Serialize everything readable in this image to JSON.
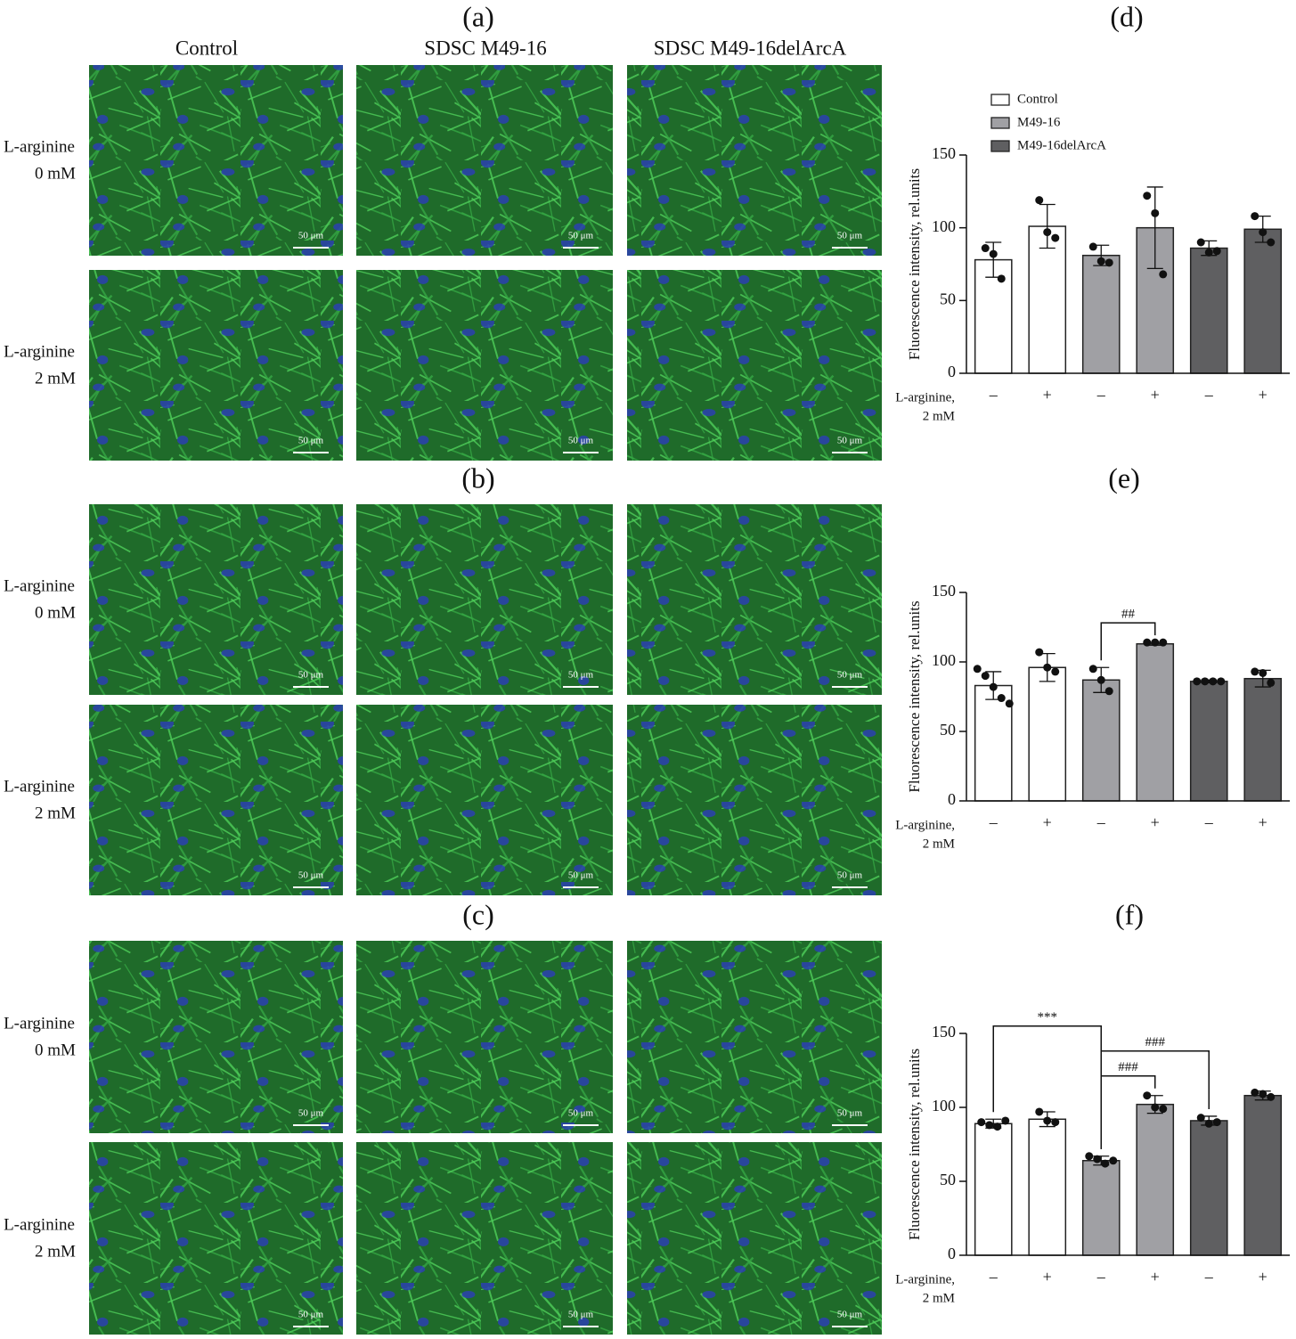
{
  "micrographs": {
    "panels": [
      "(a)",
      "(b)",
      "(c)"
    ],
    "columns": [
      "Control",
      "SDSC M49-16",
      "SDSC M49-16delArcA"
    ],
    "rows": [
      [
        "L-arginine",
        "0 mM"
      ],
      [
        "L-arginine",
        "2 mM"
      ]
    ],
    "scale_bar": "50 μm"
  },
  "chart_data": [
    {
      "type": "bar",
      "title": "(d)",
      "ylabel": "Fluorescence intensity, rel.units",
      "xlabel": [
        "L-arginine,",
        "2 mM"
      ],
      "categories": [
        "–",
        "+",
        "–",
        "+",
        "–",
        "+"
      ],
      "ylim": [
        0,
        150
      ],
      "yticks": [
        0,
        50,
        100,
        150
      ],
      "legend": true,
      "series": [
        {
          "name": "Control",
          "color": "#ffffff",
          "values": [
            78,
            101,
            null,
            null,
            null,
            null
          ],
          "errors": [
            12,
            15,
            null,
            null,
            null,
            null
          ],
          "points": [
            [
              86,
              82,
              65
            ],
            [
              119,
              97,
              93
            ],
            null,
            null,
            null,
            null
          ]
        },
        {
          "name": "M49-16",
          "color": "#a0a0a4",
          "values": [
            null,
            null,
            81,
            100,
            null,
            null
          ],
          "errors": [
            null,
            null,
            7,
            28,
            null,
            null
          ],
          "points": [
            null,
            null,
            [
              87,
              77,
              76
            ],
            [
              122,
              110,
              68
            ],
            null,
            null
          ]
        },
        {
          "name": "M49-16delArcA",
          "color": "#5f5f61",
          "values": [
            null,
            null,
            null,
            null,
            86,
            99
          ],
          "errors": [
            null,
            null,
            null,
            null,
            5,
            9
          ],
          "points": [
            null,
            null,
            null,
            null,
            [
              90,
              83,
              84
            ],
            [
              108,
              97,
              90
            ]
          ]
        }
      ],
      "annotations": []
    },
    {
      "type": "bar",
      "title": "(e)",
      "ylabel": "Fluorescence intensity, rel.units",
      "xlabel": [
        "L-arginine,",
        "2 mM"
      ],
      "categories": [
        "–",
        "+",
        "–",
        "+",
        "–",
        "+"
      ],
      "ylim": [
        0,
        150
      ],
      "yticks": [
        0,
        50,
        100,
        150
      ],
      "legend": false,
      "series": [
        {
          "color": "#ffffff",
          "values": [
            83,
            96,
            null,
            null,
            null,
            null
          ],
          "errors": [
            10,
            10,
            null,
            null,
            null,
            null
          ],
          "points": [
            [
              95,
              90,
              82,
              74,
              70
            ],
            [
              107,
              96,
              93
            ],
            null,
            null,
            null,
            null
          ]
        },
        {
          "color": "#a0a0a4",
          "values": [
            null,
            null,
            87,
            113,
            null,
            null
          ],
          "errors": [
            null,
            null,
            9,
            1,
            null,
            null
          ],
          "points": [
            null,
            null,
            [
              95,
              87,
              79
            ],
            [
              114,
              114,
              114
            ],
            null,
            null
          ]
        },
        {
          "color": "#5f5f61",
          "values": [
            null,
            null,
            null,
            null,
            86,
            88
          ],
          "errors": [
            null,
            null,
            null,
            null,
            1,
            6
          ],
          "points": [
            null,
            null,
            null,
            null,
            [
              86,
              86,
              86,
              86
            ],
            [
              93,
              92,
              85
            ]
          ]
        }
      ],
      "annotations": [
        {
          "text": "##",
          "between": [
            2,
            3
          ]
        }
      ]
    },
    {
      "type": "bar",
      "title": "(f)",
      "ylabel": "Fluorescence intensity, rel.units",
      "xlabel": [
        "L-arginine,",
        "2 mM"
      ],
      "categories": [
        "–",
        "+",
        "–",
        "+",
        "–",
        "+"
      ],
      "ylim": [
        0,
        150
      ],
      "yticks": [
        0,
        50,
        100,
        150
      ],
      "legend": false,
      "series": [
        {
          "color": "#ffffff",
          "values": [
            89,
            92,
            null,
            null,
            null,
            null
          ],
          "errors": [
            3,
            5,
            null,
            null,
            null,
            null
          ],
          "points": [
            [
              90,
              88,
              87,
              91
            ],
            [
              97,
              91,
              90
            ],
            null,
            null,
            null,
            null
          ]
        },
        {
          "color": "#a0a0a4",
          "values": [
            null,
            null,
            64,
            102,
            null,
            null
          ],
          "errors": [
            null,
            null,
            3,
            6,
            null,
            null
          ],
          "points": [
            null,
            null,
            [
              67,
              65,
              62,
              64
            ],
            [
              108,
              100,
              99
            ],
            null,
            null
          ]
        },
        {
          "color": "#5f5f61",
          "values": [
            null,
            null,
            null,
            null,
            91,
            108
          ],
          "errors": [
            null,
            null,
            null,
            null,
            3,
            3
          ],
          "points": [
            null,
            null,
            null,
            null,
            [
              93,
              89,
              90
            ],
            [
              110,
              109,
              107
            ]
          ]
        }
      ],
      "annotations": [
        {
          "text": "###",
          "between": [
            2,
            3
          ]
        },
        {
          "text": "###",
          "between": [
            2,
            4
          ]
        },
        {
          "text": "***",
          "between": [
            0,
            2
          ]
        }
      ]
    }
  ]
}
